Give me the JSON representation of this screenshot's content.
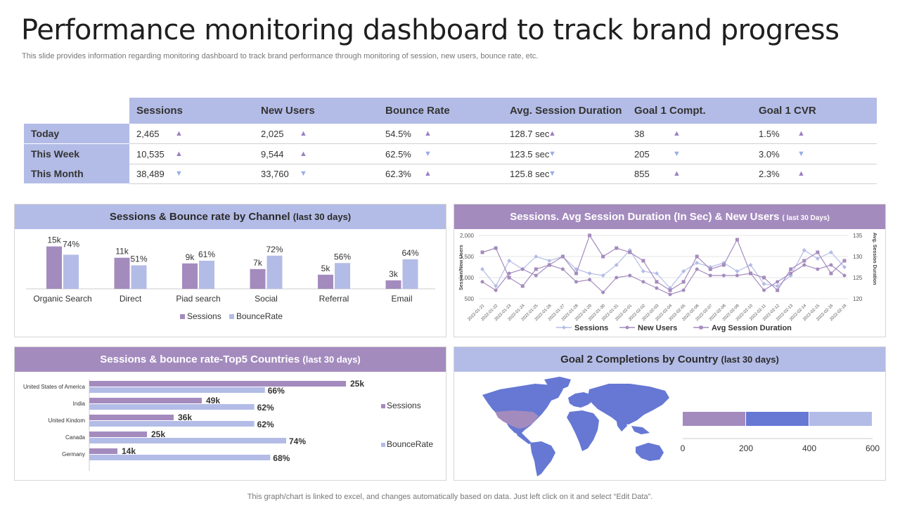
{
  "title": "Performance monitoring dashboard to track brand progress",
  "subtitle": "This slide provides information regarding monitoring dashboard to track brand performance through monitoring of session, new users, bounce rate, etc.",
  "footer": "This graph/chart is linked to excel, and changes automatically based on data. Just left click on it and select “Edit Data”.",
  "colors": {
    "purple": "#a48bbe",
    "lavender": "#b3bce6",
    "blue": "#6678d4",
    "up_arrow": "#9b7fc3",
    "down_arrow": "#98aee6"
  },
  "kpi_table": {
    "headers": [
      "Sessions",
      "New Users",
      "Bounce Rate",
      "Avg. Session Duration",
      "Goal 1 Compt.",
      "Goal 1 CVR"
    ],
    "rows": [
      {
        "label": "Today",
        "cells": [
          {
            "value": "2,465",
            "trend": "up"
          },
          {
            "value": "2,025",
            "trend": "up"
          },
          {
            "value": "54.5%",
            "trend": "up"
          },
          {
            "value": "128.7 sec",
            "trend": "up"
          },
          {
            "value": "38",
            "trend": "up"
          },
          {
            "value": "1.5%",
            "trend": "up"
          }
        ]
      },
      {
        "label": "This Week",
        "cells": [
          {
            "value": "10,535",
            "trend": "up"
          },
          {
            "value": "9,544",
            "trend": "up"
          },
          {
            "value": "62.5%",
            "trend": "down"
          },
          {
            "value": "123.5 sec",
            "trend": "down"
          },
          {
            "value": "205",
            "trend": "down"
          },
          {
            "value": "3.0%",
            "trend": "down"
          }
        ]
      },
      {
        "label": "This Month",
        "cells": [
          {
            "value": "38,489",
            "trend": "down"
          },
          {
            "value": "33,760",
            "trend": "down"
          },
          {
            "value": "62.3%",
            "trend": "up"
          },
          {
            "value": "125.8 sec",
            "trend": "down"
          },
          {
            "value": "855",
            "trend": "up"
          },
          {
            "value": "2.3%",
            "trend": "up"
          }
        ]
      }
    ]
  },
  "panels": {
    "channel": {
      "title": "Sessions & Bounce rate by Channel",
      "period": "(last 30 days)"
    },
    "timeline": {
      "title": "Sessions. Avg Session Duration (In Sec) & New Users",
      "period": "( last 30 Days)"
    },
    "countries": {
      "title": "Sessions & bounce rate-Top5 Countries",
      "period": "(last 30 days)"
    },
    "goal2": {
      "title": "Goal 2 Completions by Country",
      "period": "(last 30 days)"
    }
  },
  "chart_data": [
    {
      "id": "channel",
      "type": "bar",
      "categories": [
        "Organic Search",
        "Direct",
        "Piad search",
        "Social",
        "Referral",
        "Email"
      ],
      "series": [
        {
          "name": "Sessions",
          "values": [
            15,
            11,
            9,
            7,
            5,
            3
          ],
          "labels": [
            "15k",
            "11k",
            "9k",
            "7k",
            "5k",
            "3k"
          ],
          "color": "#a48bbe"
        },
        {
          "name": "BounceRate",
          "values": [
            74,
            51,
            61,
            72,
            56,
            64
          ],
          "labels": [
            "74%",
            "51%",
            "61%",
            "72%",
            "56%",
            "64%"
          ],
          "color": "#b3bce6"
        }
      ],
      "legend": "bottom"
    },
    {
      "id": "timeline",
      "type": "line",
      "x": [
        "2022-01-21",
        "2022-01-22",
        "2022-01-23",
        "2022-01-24",
        "2022-01-25",
        "2022-01-26",
        "2022-01-27",
        "2022-01-28",
        "2022-01-29",
        "2022-01-30",
        "2022-01-31",
        "2022-02-01",
        "2022-02-02",
        "2022-02-03",
        "2022-02-04",
        "2022-02-05",
        "2022-02-06",
        "2022-02-07",
        "2022-02-08",
        "2022-02-09",
        "2022-02-10",
        "2022-02-11",
        "2022-02-12",
        "2022-02-13",
        "2022-02-14",
        "2022-02-15",
        "2022-02-16",
        "2022-02-18"
      ],
      "left_axis": {
        "label": "Session/New Users",
        "ticks": [
          "2,000",
          "1,500",
          "1,000",
          "500"
        ],
        "range": [
          500,
          2000
        ]
      },
      "right_axis": {
        "label": "Avg. Session Duration",
        "ticks": [
          "135",
          "130",
          "125",
          "120"
        ],
        "range": [
          120,
          135
        ]
      },
      "series": [
        {
          "name": "Sessions",
          "axis": "left",
          "color": "#b3bce6",
          "marker": "diamond",
          "values": [
            1200,
            800,
            1400,
            1200,
            1500,
            1400,
            1500,
            1200,
            1100,
            1050,
            1300,
            1650,
            1150,
            1100,
            750,
            1150,
            1350,
            1250,
            1350,
            1150,
            1300,
            850,
            800,
            1050,
            1650,
            1450,
            1600,
            1250
          ]
        },
        {
          "name": "New Users",
          "axis": "left",
          "color": "#a48bbe",
          "marker": "circle",
          "values": [
            900,
            700,
            1100,
            1200,
            1050,
            1300,
            1200,
            900,
            950,
            650,
            1000,
            1050,
            900,
            750,
            600,
            700,
            1200,
            1050,
            1050,
            1050,
            1100,
            700,
            900,
            1100,
            1300,
            1200,
            1300,
            1050
          ]
        },
        {
          "name": "Avg Session Duration",
          "axis": "right",
          "color": "#a48bbe",
          "marker": "square",
          "values": [
            131,
            132,
            125,
            123,
            127,
            128,
            130,
            126,
            135,
            130,
            132,
            131,
            129,
            124,
            122,
            124,
            130,
            127,
            128,
            134,
            126,
            125,
            122,
            127,
            129,
            131,
            126,
            129
          ]
        }
      ],
      "legend": "bottom"
    },
    {
      "id": "countries",
      "type": "bar",
      "orientation": "horizontal",
      "categories": [
        "United States of America",
        "India",
        "United Kindom",
        "Canada",
        "Germany"
      ],
      "series": [
        {
          "name": "Sessions",
          "values": [
            25,
            49,
            36,
            25,
            14
          ],
          "labels": [
            "25k",
            "49k",
            "36k",
            "25k",
            "14k"
          ],
          "color": "#a48bbe"
        },
        {
          "name": "BounceRate",
          "values": [
            66,
            62,
            62,
            74,
            68
          ],
          "labels": [
            "66%",
            "62%",
            "62%",
            "74%",
            "68%"
          ],
          "color": "#b3bce6"
        }
      ],
      "legend": "right"
    },
    {
      "id": "goal2",
      "type": "bar",
      "orientation": "horizontal-stacked",
      "segments": [
        {
          "value": 200,
          "color": "#a48bbe"
        },
        {
          "value": 200,
          "color": "#6678d4"
        },
        {
          "value": 200,
          "color": "#b3bce6"
        }
      ],
      "xticks": [
        "0",
        "200",
        "400",
        "600"
      ],
      "xlim": [
        0,
        600
      ]
    }
  ]
}
